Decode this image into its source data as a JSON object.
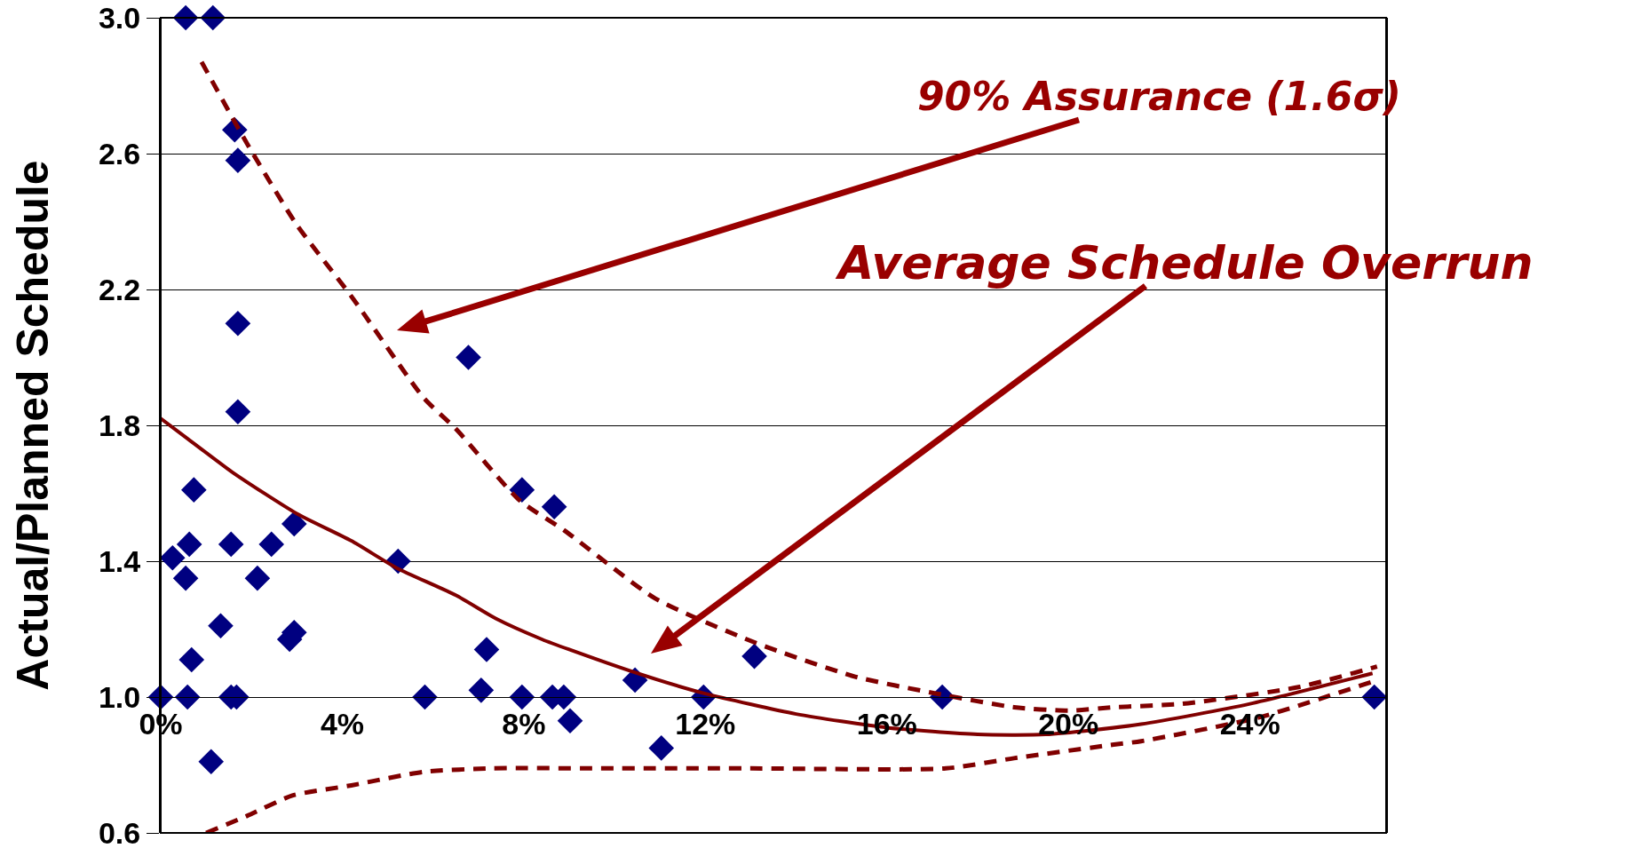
{
  "chart_data": {
    "type": "scatter",
    "ylabel": "Actual/Planned Schedule",
    "xlim": [
      0,
      27
    ],
    "xticks": [
      {
        "value": 0,
        "label": "0%"
      },
      {
        "value": 4,
        "label": "4%"
      },
      {
        "value": 8,
        "label": "8%"
      },
      {
        "value": 12,
        "label": "12%"
      },
      {
        "value": 16,
        "label": "16%"
      },
      {
        "value": 20,
        "label": "20%"
      },
      {
        "value": 24,
        "label": "24%"
      }
    ],
    "ylim": [
      0.6,
      3.0
    ],
    "yticks": [
      {
        "value": 0.6,
        "label": "0.6"
      },
      {
        "value": 1.0,
        "label": "1.0"
      },
      {
        "value": 1.4,
        "label": "1.4"
      },
      {
        "value": 1.8,
        "label": "1.8"
      },
      {
        "value": 2.2,
        "label": "2.2"
      },
      {
        "value": 2.6,
        "label": "2.6"
      },
      {
        "value": 3.0,
        "label": "3.0"
      }
    ],
    "grid": "y",
    "series": [
      {
        "type": "scatter",
        "color": "#000080",
        "marker": "diamond",
        "x": [
          0.55,
          1.15,
          1.63,
          1.7,
          1.7,
          6.78,
          1.7,
          0.73,
          7.96,
          0.63,
          1.55,
          2.44,
          2.94,
          0.26,
          5.23,
          0.55,
          2.13,
          1.32,
          2.94,
          2.84,
          0.68,
          7.18,
          0,
          0.59,
          1.55,
          1.67,
          5.82,
          7.06,
          7.96,
          1.11,
          8.67,
          8.63,
          8.88,
          9.02,
          10.45,
          11.96,
          11.03,
          13.08,
          17.22,
          26.74
        ],
        "values": [
          3.0,
          3.0,
          2.67,
          2.58,
          2.1,
          2.0,
          1.84,
          1.61,
          1.61,
          1.45,
          1.45,
          1.45,
          1.51,
          1.41,
          1.4,
          1.35,
          1.35,
          1.21,
          1.19,
          1.17,
          1.11,
          1.14,
          1.0,
          1.0,
          1.0,
          1.0,
          1.0,
          1.02,
          1.0,
          0.81,
          1.56,
          1.0,
          1.0,
          0.93,
          1.05,
          1.0,
          0.85,
          1.12,
          1.0,
          1.0
        ]
      },
      {
        "type": "line",
        "color": "#800000",
        "line_style": "solid",
        "x": [
          0,
          0.6,
          1.6,
          3,
          4.2,
          5.2,
          6.5,
          7.4,
          8.4,
          9,
          10.5,
          12,
          14,
          16,
          18,
          19.5,
          21.6,
          24,
          26.7
        ],
        "values": [
          1.82,
          1.76,
          1.66,
          1.54,
          1.46,
          1.38,
          1.3,
          1.23,
          1.17,
          1.14,
          1.07,
          1.01,
          0.95,
          0.91,
          0.89,
          0.89,
          0.92,
          0.98,
          1.07
        ]
      },
      {
        "type": "line",
        "color": "#800000",
        "line_style": "dashed",
        "x": [
          0.9,
          1.9,
          3,
          4.2,
          5.8,
          6.5,
          7.9,
          8.9,
          10.9,
          13.1,
          15.3,
          17.1,
          18.8,
          20,
          21,
          22.5,
          25.1,
          26.8
        ],
        "values": [
          2.87,
          2.63,
          2.39,
          2.18,
          1.88,
          1.79,
          1.58,
          1.49,
          1.29,
          1.16,
          1.06,
          1.01,
          0.97,
          0.96,
          0.97,
          0.98,
          1.03,
          1.09
        ]
      },
      {
        "type": "line",
        "color": "#800000",
        "line_style": "dashed",
        "x": [
          1.0,
          1.9,
          2.9,
          4.2,
          5.8,
          7.3,
          10,
          13,
          17.3,
          18.8,
          21,
          21.6,
          24.2,
          26.8
        ],
        "values": [
          0.6,
          0.65,
          0.71,
          0.74,
          0.78,
          0.79,
          0.79,
          0.79,
          0.79,
          0.82,
          0.86,
          0.87,
          0.94,
          1.05
        ]
      }
    ],
    "annotations": [
      "90% Assurance (1.6σ)",
      "Average Schedule Overrun"
    ]
  }
}
